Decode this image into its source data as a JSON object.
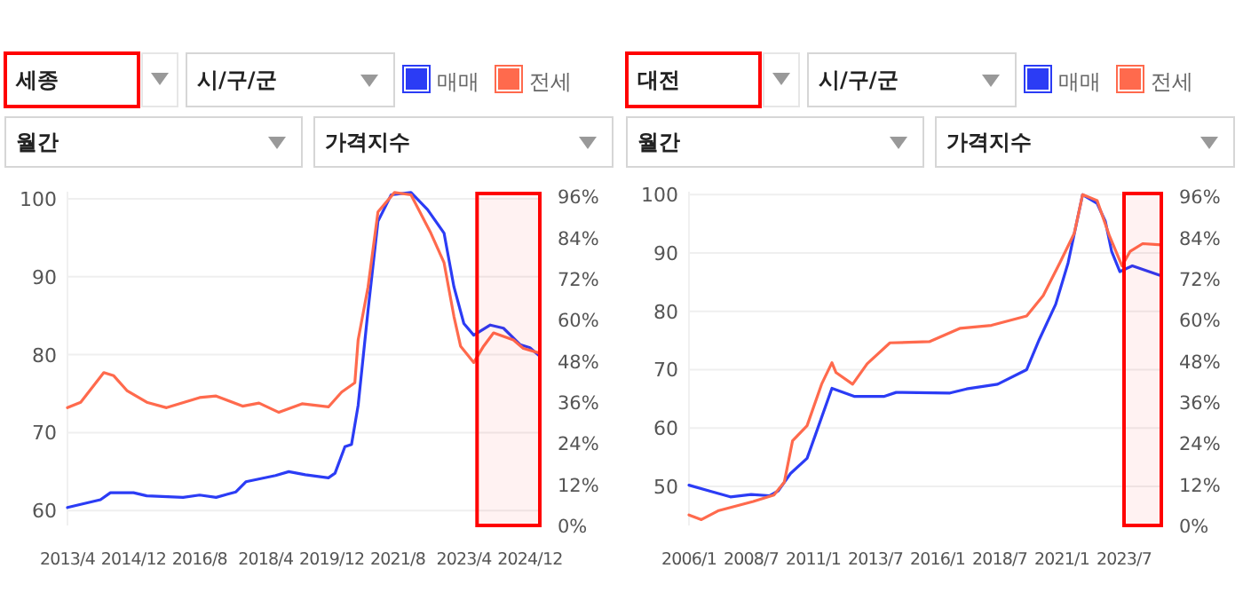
{
  "chart_data": [
    {
      "type": "line",
      "title": "세종",
      "annotations": [
        "시/구/군",
        "월간",
        "가격지수"
      ],
      "legend": "top right",
      "grid": "y",
      "xlim": [
        "2013-04",
        "2025-03"
      ],
      "xticks": [
        {
          "value": "2013-04",
          "label": "2013/4"
        },
        {
          "value": "2014-12",
          "label": "2014/12"
        },
        {
          "value": "2016-08",
          "label": "2016/8"
        },
        {
          "value": "2018-04",
          "label": "2018/4"
        },
        {
          "value": "2019-12",
          "label": "2019/12"
        },
        {
          "value": "2021-08",
          "label": "2021/8"
        },
        {
          "value": "2023-04",
          "label": "2023/4"
        },
        {
          "value": "2024-12",
          "label": "2024/12"
        }
      ],
      "ylim": [
        58.1,
        100.9
      ],
      "yticks": [
        60,
        70,
        80,
        90,
        100
      ],
      "y2lim": [
        0,
        97.4
      ],
      "y2ticks": [
        {
          "value": 0,
          "label": "0%"
        },
        {
          "value": 12,
          "label": "12%"
        },
        {
          "value": 24,
          "label": "24%"
        },
        {
          "value": 36,
          "label": "36%"
        },
        {
          "value": 48,
          "label": "48%"
        },
        {
          "value": 60,
          "label": "60%"
        },
        {
          "value": 72,
          "label": "72%"
        },
        {
          "value": 84,
          "label": "84%"
        },
        {
          "value": 96,
          "label": "96%"
        }
      ],
      "bands": [
        {
          "axis": "x",
          "from": "2023-08",
          "to": "2025-03",
          "color": "#ff0000"
        }
      ],
      "series": [
        {
          "name": "매매",
          "color": "#2b3cf5",
          "x": [
            "2013-04",
            "2014-02",
            "2014-05",
            "2014-12",
            "2015-04",
            "2016-03",
            "2016-08",
            "2017-01",
            "2017-07",
            "2017-10",
            "2018-07",
            "2018-11",
            "2019-04",
            "2019-11",
            "2020-01",
            "2020-04",
            "2020-06",
            "2020-08",
            "2020-11",
            "2021-02",
            "2021-06",
            "2021-12",
            "2022-05",
            "2022-10",
            "2023-01",
            "2023-04",
            "2023-07",
            "2023-12",
            "2024-04",
            "2024-09",
            "2024-12",
            "2025-03"
          ],
          "values": [
            60.4,
            61.4,
            62.3,
            62.3,
            61.9,
            61.7,
            62.0,
            61.7,
            62.4,
            63.7,
            64.5,
            65.0,
            64.6,
            64.2,
            64.8,
            68.2,
            68.5,
            73.5,
            85.7,
            97.1,
            100.5,
            100.8,
            98.6,
            95.6,
            88.7,
            84.0,
            82.5,
            83.8,
            83.4,
            81.3,
            80.9,
            79.8
          ]
        },
        {
          "name": "전세",
          "color": "#ff6a4d",
          "x": [
            "2013-04",
            "2013-08",
            "2014-03",
            "2014-06",
            "2014-10",
            "2015-04",
            "2015-10",
            "2016-08",
            "2017-01",
            "2017-09",
            "2018-02",
            "2018-08",
            "2019-03",
            "2019-11",
            "2020-03",
            "2020-07",
            "2020-08",
            "2020-11",
            "2021-02",
            "2021-07",
            "2021-12",
            "2022-06",
            "2022-10",
            "2023-01",
            "2023-03",
            "2023-07",
            "2023-10",
            "2024-01",
            "2024-07",
            "2024-10",
            "2025-03"
          ],
          "values": [
            73.2,
            73.9,
            77.7,
            77.3,
            75.4,
            73.9,
            73.2,
            74.5,
            74.7,
            73.4,
            73.8,
            72.6,
            73.7,
            73.3,
            75.2,
            76.4,
            81.9,
            88.7,
            98.3,
            100.8,
            100.5,
            95.6,
            91.8,
            84.9,
            81.1,
            79.0,
            81.1,
            82.8,
            81.9,
            80.8,
            80.2
          ]
        }
      ]
    },
    {
      "type": "line",
      "title": "대전",
      "annotations": [
        "시/구/군",
        "월간",
        "가격지수"
      ],
      "legend": "top right",
      "grid": "y",
      "xlim": [
        "2006-01",
        "2025-01"
      ],
      "xticks": [
        {
          "value": "2006-01",
          "label": "2006/1"
        },
        {
          "value": "2008-07",
          "label": "2008/7"
        },
        {
          "value": "2011-01",
          "label": "2011/1"
        },
        {
          "value": "2013-07",
          "label": "2013/7"
        },
        {
          "value": "2016-01",
          "label": "2016/1"
        },
        {
          "value": "2018-07",
          "label": "2018/7"
        },
        {
          "value": "2021-01",
          "label": "2021/1"
        },
        {
          "value": "2023-07",
          "label": "2023/7"
        }
      ],
      "ylim": [
        43.3,
        100.5
      ],
      "yticks": [
        50,
        60,
        70,
        80,
        90,
        100
      ],
      "y2lim": [
        0,
        97.4
      ],
      "y2ticks": [
        {
          "value": 0,
          "label": "0%"
        },
        {
          "value": 12,
          "label": "12%"
        },
        {
          "value": 24,
          "label": "24%"
        },
        {
          "value": 36,
          "label": "36%"
        },
        {
          "value": 48,
          "label": "48%"
        },
        {
          "value": 60,
          "label": "60%"
        },
        {
          "value": 72,
          "label": "72%"
        },
        {
          "value": 84,
          "label": "84%"
        },
        {
          "value": 96,
          "label": "96%"
        }
      ],
      "bands": [
        {
          "axis": "x",
          "from": "2023-07",
          "to": "2025-01",
          "color": "#ff0000"
        }
      ],
      "series": [
        {
          "name": "매매",
          "color": "#2b3cf5",
          "x": [
            "2006-01",
            "2006-11",
            "2007-09",
            "2008-07",
            "2009-04",
            "2009-08",
            "2010-02",
            "2010-10",
            "2011-02",
            "2011-10",
            "2012-09",
            "2013-11",
            "2014-05",
            "2016-07",
            "2017-03",
            "2018-06",
            "2019-08",
            "2020-02",
            "2020-10",
            "2021-04",
            "2021-11",
            "2022-06",
            "2022-10",
            "2023-01",
            "2023-05",
            "2023-11",
            "2025-01"
          ],
          "values": [
            50.2,
            49.2,
            48.2,
            48.6,
            48.4,
            49.2,
            52.2,
            54.8,
            58.8,
            66.8,
            65.4,
            65.4,
            66.1,
            66.0,
            66.7,
            67.5,
            70.0,
            75.1,
            81.2,
            88.3,
            100.0,
            98.5,
            95.4,
            90.3,
            86.8,
            87.8,
            86.1
          ]
        },
        {
          "name": "전세",
          "color": "#ff6a4d",
          "x": [
            "2006-01",
            "2006-07",
            "2007-03",
            "2008-08",
            "2009-06",
            "2009-11",
            "2010-03",
            "2010-10",
            "2011-05",
            "2011-10",
            "2011-12",
            "2012-08",
            "2013-03",
            "2014-02",
            "2015-09",
            "2016-12",
            "2018-03",
            "2019-08",
            "2020-04",
            "2020-12",
            "2021-07",
            "2021-11",
            "2022-06",
            "2022-12",
            "2023-06",
            "2023-10",
            "2024-04",
            "2025-01"
          ],
          "values": [
            45.1,
            44.3,
            45.8,
            47.4,
            48.5,
            50.7,
            57.8,
            60.4,
            67.5,
            71.2,
            69.5,
            67.5,
            71.0,
            74.6,
            74.8,
            77.1,
            77.6,
            79.2,
            82.7,
            88.3,
            93.4,
            100.0,
            99.0,
            92.9,
            87.8,
            90.3,
            91.6,
            91.4
          ]
        }
      ]
    }
  ]
}
